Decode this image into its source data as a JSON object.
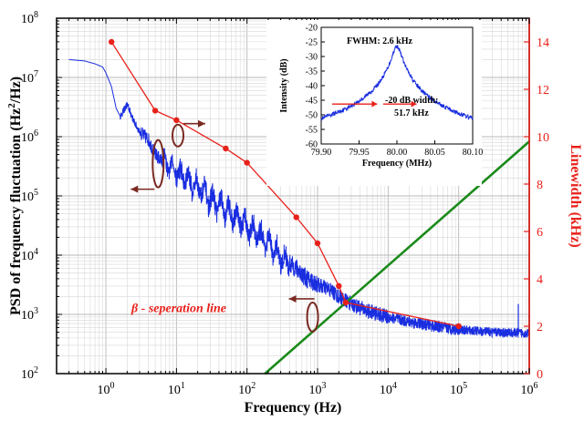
{
  "chart_data": {
    "type": "line",
    "xlabel": "Frequency (Hz)",
    "ylabel": "PSD of frequency fluctuation (Hz²/Hz)",
    "ylabel_parts": [
      "PSD of frequency fluctuation (Hz",
      "2",
      "/Hz)"
    ],
    "y2label": "Linewidth (kHz)",
    "xscale": "log",
    "yscale": "log",
    "xlim": [
      0.2,
      1000000
    ],
    "ylim": [
      100,
      100000000
    ],
    "y2lim": [
      0,
      15
    ],
    "grid": true,
    "x_ticks": [
      {
        "base": "10",
        "exp": "0"
      },
      {
        "base": "10",
        "exp": "1"
      },
      {
        "base": "10",
        "exp": "2"
      },
      {
        "base": "10",
        "exp": "3"
      },
      {
        "base": "10",
        "exp": "4"
      },
      {
        "base": "10",
        "exp": "5"
      },
      {
        "base": "10",
        "exp": "6"
      }
    ],
    "y_ticks": [
      {
        "base": "10",
        "exp": "2"
      },
      {
        "base": "10",
        "exp": "3"
      },
      {
        "base": "10",
        "exp": "4"
      },
      {
        "base": "10",
        "exp": "5"
      },
      {
        "base": "10",
        "exp": "6"
      },
      {
        "base": "10",
        "exp": "7"
      },
      {
        "base": "10",
        "exp": "8"
      }
    ],
    "y2_ticks": [
      "0",
      "2",
      "4",
      "6",
      "8",
      "10",
      "12",
      "14"
    ],
    "series": [
      {
        "name": "PSD of frequency fluctuation",
        "axis": "left",
        "color": "#1a2ee0",
        "x": [
          0.3,
          0.5,
          0.7,
          0.9,
          1.0,
          1.2,
          1.4,
          1.6,
          2.0,
          2.5,
          3.0,
          4.0,
          5.0,
          6.0,
          8.0,
          10,
          15,
          20,
          30,
          50,
          70,
          100,
          150,
          200,
          300,
          500,
          700,
          1000,
          1500,
          2000,
          3000,
          5000,
          10000,
          20000,
          50000,
          100000,
          300000,
          1000000
        ],
        "y": [
          20000000,
          19000000,
          17000000,
          15000000,
          12000000,
          7000000,
          3000000,
          2200000,
          3500000,
          1800000,
          1200000,
          900000,
          500000,
          400000,
          320000,
          260000,
          180000,
          140000,
          90000,
          60000,
          45000,
          30000,
          22000,
          16000,
          9000,
          6000,
          4000,
          3200,
          2600,
          2000,
          1500,
          1150,
          900,
          750,
          620,
          550,
          500,
          480
        ]
      },
      {
        "name": "Linewidth",
        "axis": "right",
        "color": "#e8201a",
        "x": [
          1.2,
          5,
          10,
          50,
          100,
          500,
          1000,
          2000,
          2500,
          100000
        ],
        "y": [
          14.0,
          11.1,
          10.7,
          9.5,
          8.9,
          6.6,
          5.5,
          3.7,
          3.0,
          2.0
        ]
      },
      {
        "name": "β - seperation line",
        "axis": "left",
        "color": "#1a8a1a",
        "x": [
          180,
          1000000
        ],
        "y": [
          100,
          830000
        ]
      }
    ],
    "spikes": [
      {
        "x": 700000,
        "y": 1500
      },
      {
        "x": 1000000,
        "y": 1000
      }
    ],
    "annotations": {
      "separation_label": "β - seperation line"
    },
    "inset": {
      "type": "line",
      "xlabel": "Frequency (MHz)",
      "ylabel": "Intensity (dB)",
      "xlim": [
        79.9,
        80.1
      ],
      "ylim": [
        -60,
        -20
      ],
      "x_ticks": [
        "79.90",
        "79.95",
        "80.00",
        "80.05",
        "80.10"
      ],
      "y_ticks": [
        "-60",
        "-55",
        "-50",
        "-45",
        "-40",
        "-35",
        "-30",
        "-25",
        "-20"
      ],
      "center_mhz": 80.0,
      "peak_db": -26.5,
      "fwhm_label": "FWHM: 2.6 kHz",
      "width_label_line1": "-20 dB width:",
      "width_label_line2": "51.7 kHz",
      "color": "#1a2ee0"
    }
  }
}
